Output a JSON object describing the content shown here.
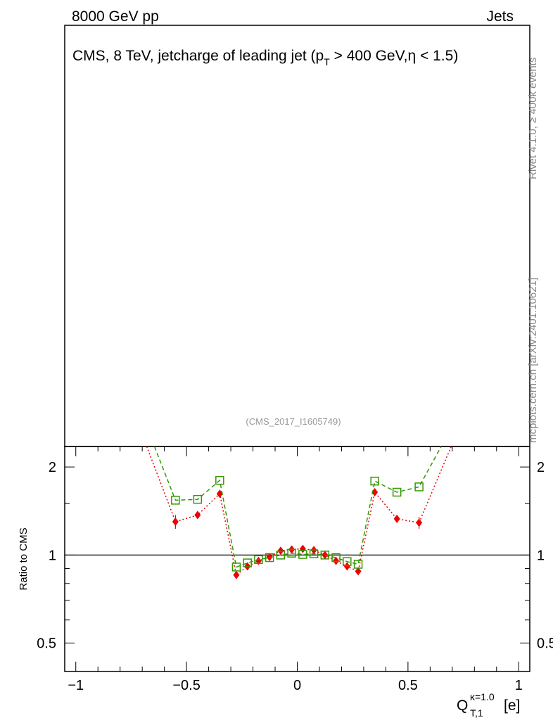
{
  "header": {
    "left": "8000 GeV pp",
    "right": "Jets"
  },
  "side_labels": {
    "rivet": "Rivet 4.1.0, ≥ 400k events",
    "source": "mcplots.cern.ch [arXiv:2401.10621]"
  },
  "chart_data": {
    "type": "line",
    "title": "CMS, 8 TeV, jetcharge of leading jet (p_T > 400 GeV,η < 1.5)",
    "analysis_id": "(CMS_2017_I1605749)",
    "ylabel": "Ratio to CMS",
    "xlabel": "Q_T,1^κ=1.0 [e]",
    "xlim": [
      -1.05,
      1.05
    ],
    "ylim": [
      0.4,
      2.35
    ],
    "y_scale": "log",
    "x_ticks": [
      "−1",
      "−0.5",
      "0",
      "0.5",
      "1"
    ],
    "y_ticks": [
      "0.5",
      "1",
      "2"
    ],
    "reference_line": 1.0,
    "x": [
      -0.55,
      -0.45,
      -0.35,
      -0.275,
      -0.225,
      -0.175,
      -0.125,
      -0.075,
      -0.025,
      0.025,
      0.075,
      0.125,
      0.175,
      0.225,
      0.275,
      0.35,
      0.45,
      0.55
    ],
    "series": [
      {
        "color": "#ee0000",
        "marker": "diamond",
        "line": "dotted",
        "values": [
          1.3,
          1.37,
          1.62,
          0.855,
          0.915,
          0.955,
          0.985,
          1.035,
          1.045,
          1.05,
          1.04,
          1.0,
          0.955,
          0.915,
          0.88,
          1.64,
          1.33,
          1.29
        ],
        "errors": [
          0.07,
          0.04,
          0.0,
          0.0,
          0.0,
          0.0,
          0.0,
          0.0,
          0.0,
          0.0,
          0.0,
          0.0,
          0.0,
          0.0,
          0.0,
          0.0,
          0.03,
          0.06
        ],
        "edge_left": [
          -0.68,
          2.35
        ],
        "edge_right": [
          0.695,
          2.35
        ]
      },
      {
        "color": "#339900",
        "marker": "open-square",
        "line": "dashed",
        "values": [
          1.54,
          1.55,
          1.8,
          0.91,
          0.94,
          0.965,
          0.98,
          1.0,
          1.015,
          1.005,
          1.01,
          1.0,
          0.98,
          0.95,
          0.93,
          1.79,
          1.64,
          1.71
        ],
        "errors": [
          0.0,
          0.0,
          0.0,
          0.0,
          0.0,
          0.0,
          0.0,
          0.0,
          0.0,
          0.0,
          0.0,
          0.0,
          0.0,
          0.0,
          0.0,
          0.0,
          0.0,
          0.0
        ],
        "edge_left": [
          -0.645,
          2.35
        ],
        "edge_right": [
          0.65,
          2.35
        ]
      }
    ]
  }
}
